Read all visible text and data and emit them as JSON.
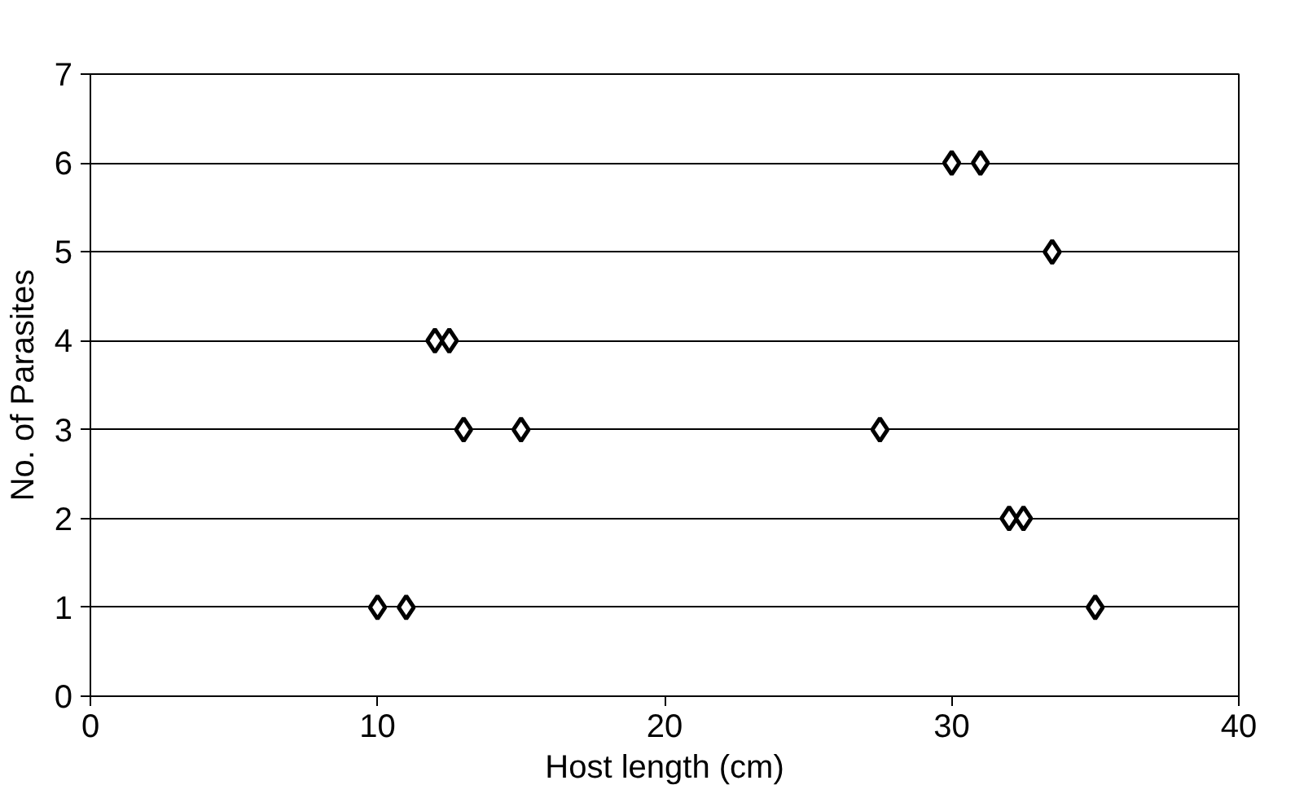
{
  "chart_data": {
    "type": "scatter",
    "xlabel": "Host length (cm)",
    "ylabel": "No. of Parasites",
    "x": [
      30,
      31,
      33.5,
      12,
      12.5,
      13,
      15,
      27.5,
      32,
      32.5,
      10,
      11,
      35
    ],
    "values": [
      6,
      6,
      5,
      4,
      4,
      3,
      3,
      3,
      2,
      2,
      1,
      1,
      1
    ],
    "color": "#000000",
    "marker": "diamond",
    "grid": "y",
    "xlim": [
      0,
      40
    ],
    "xticks": [
      0,
      10,
      20,
      30,
      40
    ],
    "ylim": [
      0,
      7
    ],
    "yticks": [
      0,
      1,
      2,
      3,
      4,
      5,
      6,
      7
    ]
  }
}
